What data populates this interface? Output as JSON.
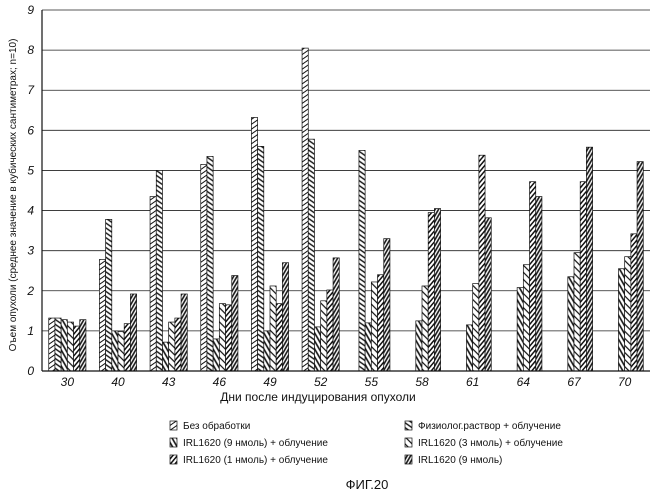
{
  "chart_data": {
    "type": "bar",
    "title": "",
    "xlabel": "Дни после индуцирования опухоли",
    "ylabel": "Оъем опухоли (среднее значение в кубических сантиметрах; n=10)",
    "ylim": [
      0,
      9
    ],
    "yticks": [
      "0",
      "1",
      "2",
      "3",
      "4",
      "5",
      "6",
      "7",
      "8",
      "9"
    ],
    "grid": true,
    "legend_position": "bottom",
    "categories": [
      "30",
      "40",
      "43",
      "46",
      "49",
      "52",
      "55",
      "58",
      "61",
      "64",
      "67",
      "70"
    ],
    "series": [
      {
        "name": "Без обработки",
        "values": [
          1.32,
          2.78,
          4.35,
          5.15,
          6.32,
          8.05,
          null,
          null,
          null,
          null,
          null,
          null
        ]
      },
      {
        "name": "Физиолог.раствор + облучение",
        "values": [
          1.32,
          3.78,
          5.0,
          5.35,
          5.6,
          5.78,
          5.5,
          null,
          null,
          null,
          null,
          null
        ]
      },
      {
        "name": "IRL1620  (9 нмоль) + облучение",
        "values": [
          1.28,
          1.0,
          0.72,
          0.8,
          1.0,
          1.1,
          1.2,
          1.25,
          1.15,
          2.08,
          2.35,
          2.55
        ]
      },
      {
        "name": "IRL1620 (3 нмоль) + облучение",
        "values": [
          1.22,
          0.98,
          1.22,
          1.68,
          2.12,
          1.75,
          2.22,
          2.12,
          2.18,
          2.65,
          2.95,
          2.85
        ]
      },
      {
        "name": "IRL1620 (1 нмоль) + облучение",
        "values": [
          1.12,
          1.18,
          1.32,
          1.65,
          1.68,
          2.02,
          2.4,
          3.95,
          5.38,
          4.72,
          4.72,
          3.42
        ]
      },
      {
        "name": "IRL1620 (9 нмоль)",
        "values": [
          1.28,
          1.92,
          1.92,
          2.38,
          2.7,
          2.82,
          3.3,
          4.05,
          3.82,
          4.35,
          5.58,
          5.22
        ]
      }
    ],
    "figure_label": "ФИГ.20"
  },
  "colors": {
    "hatch": "#111111",
    "background": "#ffffff",
    "grid": "#222222"
  }
}
